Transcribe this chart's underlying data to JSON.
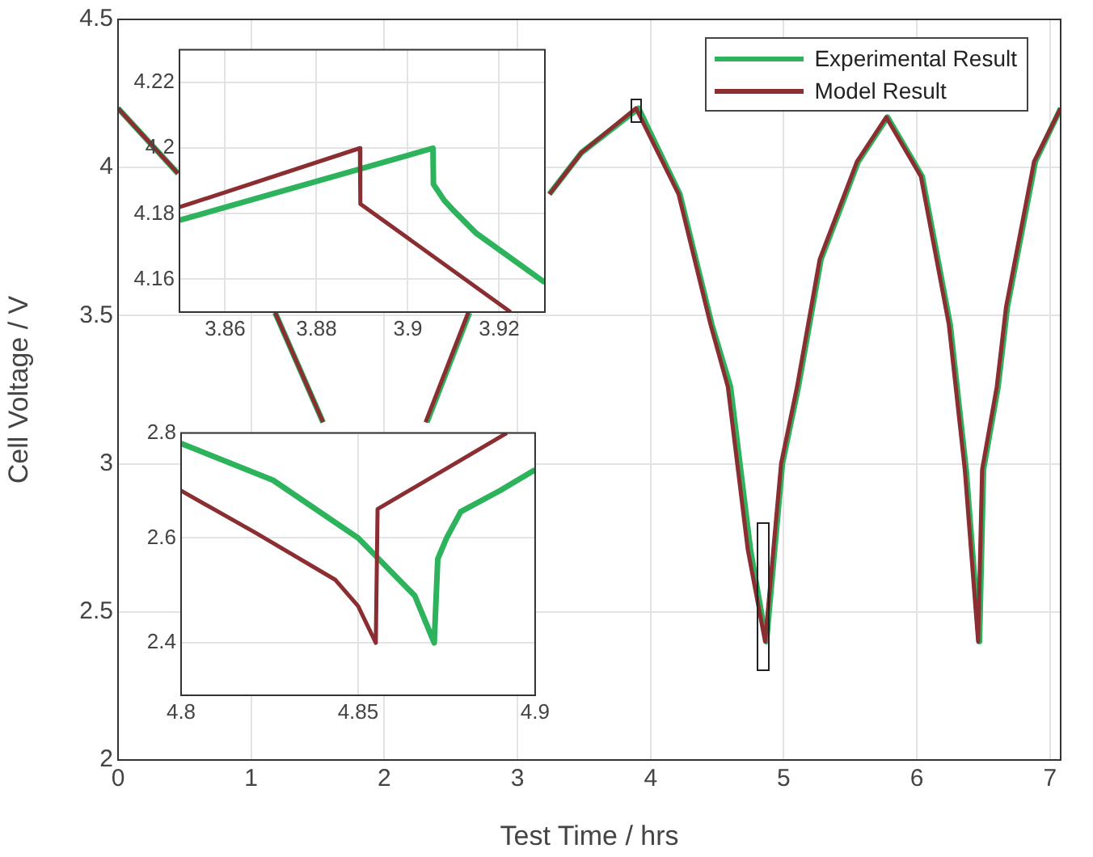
{
  "chart_data": [
    {
      "type": "line",
      "xlabel": "Test Time / hrs",
      "ylabel": "Cell Voltage / V",
      "xlim": [
        0,
        7.08
      ],
      "ylim": [
        2,
        4.5
      ],
      "xticks": [
        0,
        1,
        2,
        3,
        4,
        5,
        6,
        7
      ],
      "yticks": [
        2,
        2.5,
        3,
        3.5,
        4,
        4.5
      ],
      "grid": true,
      "legend": "top right",
      "series": [
        {
          "name": "Experimental Result",
          "color": "#2db35c",
          "x": [
            0,
            0.45,
            0.8,
            1.18,
            1.54,
            1.9,
            2.32,
            2.64,
            2.9,
            3.24,
            3.48,
            3.91,
            4.22,
            4.46,
            4.6,
            4.75,
            4.87,
            4.99,
            5.11,
            5.28,
            5.56,
            5.78,
            6.04,
            6.25,
            6.37,
            6.47,
            6.5,
            6.61,
            6.68,
            6.89,
            7.08
          ],
          "values": [
            4.2,
            3.98,
            null,
            3.51,
            3.14,
            null,
            3.14,
            3.51,
            null,
            3.91,
            4.05,
            4.2,
            3.91,
            3.47,
            3.26,
            2.71,
            2.4,
            3.0,
            3.26,
            3.69,
            4.02,
            4.17,
            3.97,
            3.47,
            2.98,
            2.4,
            2.98,
            3.26,
            3.53,
            4.02,
            4.2
          ]
        },
        {
          "name": "Model Result",
          "color": "#8b2e32",
          "x": [
            0,
            0.45,
            0.8,
            1.18,
            1.54,
            1.9,
            2.31,
            2.63,
            2.9,
            3.24,
            3.48,
            3.89,
            4.21,
            4.45,
            4.58,
            4.73,
            4.86,
            4.98,
            5.1,
            5.27,
            5.55,
            5.77,
            6.03,
            6.24,
            6.36,
            6.46,
            6.49,
            6.6,
            6.67,
            6.88,
            7.08
          ],
          "values": [
            4.2,
            3.98,
            null,
            3.51,
            3.14,
            null,
            3.14,
            3.51,
            null,
            3.91,
            4.05,
            4.2,
            3.91,
            3.47,
            3.26,
            2.71,
            2.4,
            3.0,
            3.26,
            3.69,
            4.02,
            4.17,
            3.97,
            3.47,
            2.98,
            2.4,
            2.98,
            3.26,
            3.53,
            4.02,
            4.2
          ]
        }
      ]
    },
    {
      "type": "line",
      "xlim": [
        3.85,
        3.93
      ],
      "ylim": [
        4.15,
        4.23
      ],
      "xticks": [
        3.86,
        3.88,
        3.9,
        3.92
      ],
      "yticks": [
        4.16,
        4.18,
        4.2,
        4.22
      ],
      "grid": true,
      "series": [
        {
          "color": "#2db35c",
          "x": [
            3.85,
            3.9055,
            3.9056,
            3.908,
            3.91,
            3.915,
            3.92,
            3.93
          ],
          "values": [
            4.178,
            4.2,
            4.189,
            4.184,
            4.181,
            4.174,
            4.169,
            4.159
          ]
        },
        {
          "color": "#8b2e32",
          "x": [
            3.85,
            3.8895,
            3.8896,
            3.9225
          ],
          "values": [
            4.182,
            4.2,
            4.183,
            4.15
          ]
        }
      ]
    },
    {
      "type": "line",
      "xlim": [
        4.8,
        4.9
      ],
      "ylim": [
        2.3,
        2.8
      ],
      "xticks": [
        4.8,
        4.85,
        4.9
      ],
      "yticks": [
        2.4,
        2.6,
        2.8
      ],
      "grid": true,
      "series": [
        {
          "color": "#2db35c",
          "x": [
            4.8,
            4.826,
            4.85,
            4.866,
            4.8715,
            4.8725,
            4.875,
            4.879,
            4.89,
            4.9
          ],
          "values": [
            2.78,
            2.71,
            2.6,
            2.49,
            2.4,
            2.56,
            2.6,
            2.65,
            2.69,
            2.73
          ]
        },
        {
          "color": "#8b2e32",
          "x": [
            4.8,
            4.821,
            4.8436,
            4.85,
            4.855,
            4.8555,
            4.892
          ],
          "values": [
            2.69,
            2.61,
            2.52,
            2.47,
            2.4,
            2.655,
            2.8
          ]
        }
      ]
    }
  ]
}
